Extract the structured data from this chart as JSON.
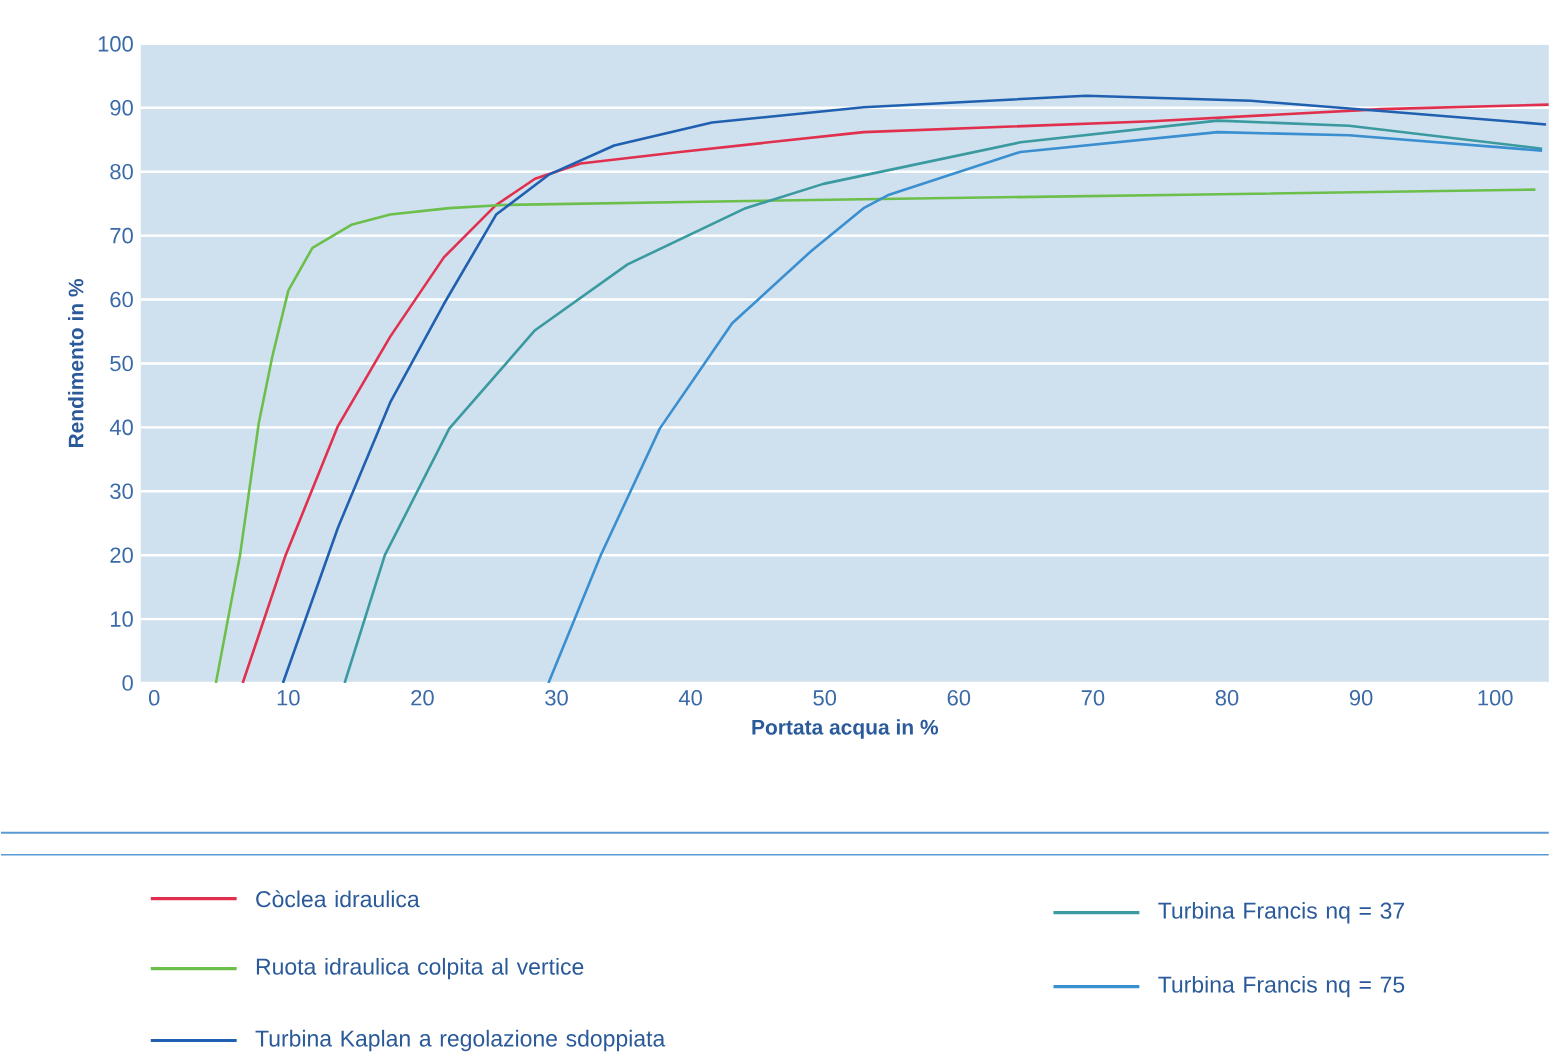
{
  "chart_data": {
    "type": "line",
    "xlabel": "Portata acqua in %",
    "ylabel": "Rendimento in %",
    "xlim": [
      -1,
      104
    ],
    "ylim": [
      0,
      100
    ],
    "xticks": [
      0,
      10,
      20,
      30,
      40,
      50,
      60,
      70,
      80,
      90,
      100
    ],
    "yticks": [
      0,
      10,
      20,
      30,
      40,
      50,
      60,
      70,
      80,
      90,
      100
    ],
    "grid": "y",
    "legend": "bottom",
    "series": [
      {
        "name": "Còclea idraulica",
        "color": "#e0304e",
        "x": [
          6.6,
          9.8,
          13.7,
          17.6,
          21.6,
          25.5,
          28.4,
          31.8,
          39.2,
          52.9,
          74.4,
          91.5,
          104
        ],
        "values": [
          0,
          20,
          40.2,
          54.2,
          66.6,
          74.8,
          78.9,
          81.3,
          83.1,
          86.2,
          87.9,
          89.8,
          90.5
        ]
      },
      {
        "name": "Ruota idraulica colpita al vertice",
        "color": "#6cbf4a",
        "x": [
          4.6,
          6.4,
          7.8,
          8.8,
          10,
          11.8,
          14.7,
          17.6,
          22,
          26,
          52.9,
          76.9,
          103
        ],
        "values": [
          0,
          20,
          40.7,
          51,
          61.4,
          68.1,
          71.7,
          73.3,
          74.3,
          74.8,
          75.7,
          76.4,
          77.2
        ]
      },
      {
        "name": "Turbina Kaplan a regolazione sdoppiata",
        "color": "#2060b0",
        "x": [
          9.6,
          13.7,
          17.6,
          21.6,
          25.5,
          29.4,
          34.3,
          41.6,
          52.9,
          69.5,
          81.8,
          91.5,
          103.8
        ],
        "values": [
          0,
          24.3,
          43.9,
          59.3,
          73.3,
          79.5,
          84.1,
          87.7,
          90.1,
          91.9,
          91.1,
          89.5,
          87.4
        ]
      },
      {
        "name": "Turbina Francis nq = 37",
        "color": "#3a9aa0",
        "x": [
          14.2,
          17.2,
          22,
          28.4,
          35.3,
          44.1,
          49.9,
          64.6,
          79.3,
          89.1,
          103.5
        ],
        "values": [
          0,
          20,
          39.8,
          55.2,
          65.5,
          74.3,
          78.1,
          84.6,
          88,
          87.2,
          83.6
        ]
      },
      {
        "name": "Turbina Francis nq = 75",
        "color": "#3a8fd0",
        "x": [
          29.4,
          33.3,
          37.7,
          43.1,
          49,
          52.9,
          54.8,
          64.6,
          79.3,
          89.1,
          103.5
        ],
        "values": [
          0,
          20,
          39.8,
          56.3,
          67.6,
          74.3,
          76.4,
          83.1,
          86.2,
          85.7,
          83.3
        ]
      }
    ]
  }
}
